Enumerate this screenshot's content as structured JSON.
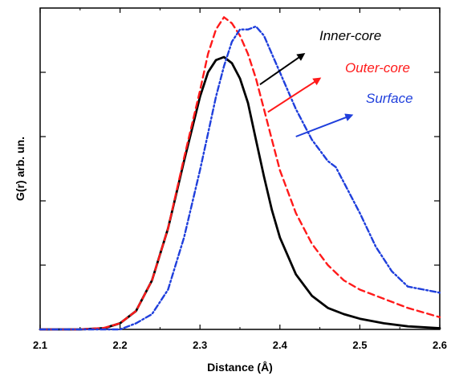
{
  "chart_data": {
    "type": "line",
    "title": "",
    "xlabel": "Distance (Å)",
    "ylabel": "G(r) arb. un.",
    "xlim": [
      2.1,
      2.6
    ],
    "ylim": [
      0,
      1.05
    ],
    "xticks": [
      "2.1",
      "2.2",
      "2.3",
      "2.4",
      "2.5",
      "2.6"
    ],
    "grid": false,
    "legend_placement": "top-right, arrow annotations",
    "series": [
      {
        "name": "Inner-core",
        "color": "#000000",
        "style": "solid",
        "x": [
          2.1,
          2.15,
          2.18,
          2.2,
          2.22,
          2.24,
          2.26,
          2.28,
          2.3,
          2.31,
          2.32,
          2.33,
          2.34,
          2.35,
          2.36,
          2.37,
          2.38,
          2.39,
          2.4,
          2.42,
          2.44,
          2.46,
          2.48,
          2.5,
          2.53,
          2.56,
          2.6
        ],
        "y": [
          0.0,
          0.0,
          0.004,
          0.02,
          0.06,
          0.16,
          0.33,
          0.55,
          0.76,
          0.84,
          0.88,
          0.89,
          0.87,
          0.82,
          0.74,
          0.62,
          0.5,
          0.39,
          0.3,
          0.18,
          0.11,
          0.07,
          0.05,
          0.035,
          0.02,
          0.01,
          0.004
        ]
      },
      {
        "name": "Outer-core",
        "color": "#ff1a1a",
        "style": "dashed",
        "x": [
          2.1,
          2.15,
          2.18,
          2.2,
          2.22,
          2.24,
          2.26,
          2.28,
          2.3,
          2.31,
          2.32,
          2.33,
          2.34,
          2.35,
          2.36,
          2.37,
          2.38,
          2.39,
          2.4,
          2.42,
          2.44,
          2.46,
          2.48,
          2.5,
          2.53,
          2.56,
          2.6
        ],
        "y": [
          0.0,
          0.0,
          0.005,
          0.02,
          0.06,
          0.16,
          0.33,
          0.56,
          0.78,
          0.9,
          0.98,
          1.02,
          1.0,
          0.96,
          0.9,
          0.82,
          0.72,
          0.62,
          0.52,
          0.38,
          0.28,
          0.21,
          0.16,
          0.13,
          0.1,
          0.07,
          0.04
        ]
      },
      {
        "name": "Surface",
        "color": "#1f3fdc",
        "style": "dash-dot",
        "x": [
          2.1,
          2.2,
          2.22,
          2.24,
          2.26,
          2.28,
          2.3,
          2.31,
          2.32,
          2.33,
          2.34,
          2.35,
          2.36,
          2.37,
          2.38,
          2.39,
          2.4,
          2.42,
          2.44,
          2.46,
          2.47,
          2.48,
          2.5,
          2.52,
          2.54,
          2.56,
          2.58,
          2.6
        ],
        "y": [
          0.0,
          0.0,
          0.02,
          0.05,
          0.13,
          0.3,
          0.52,
          0.64,
          0.76,
          0.86,
          0.94,
          0.98,
          0.98,
          0.99,
          0.96,
          0.9,
          0.84,
          0.72,
          0.62,
          0.55,
          0.53,
          0.48,
          0.38,
          0.27,
          0.19,
          0.14,
          0.13,
          0.12
        ]
      }
    ]
  }
}
